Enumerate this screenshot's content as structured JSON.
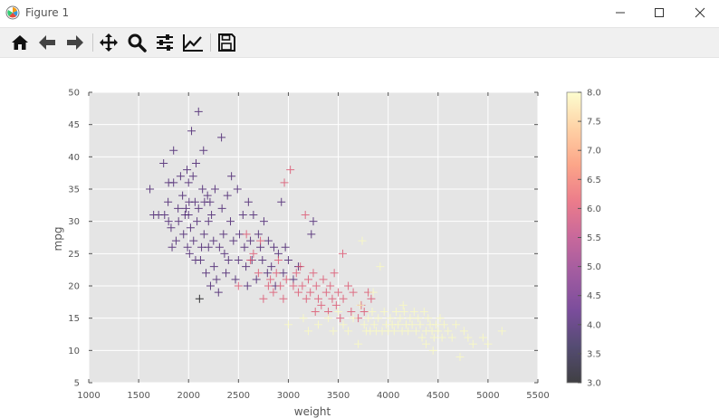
{
  "window": {
    "title": "Figure 1"
  },
  "toolbar": {
    "tools": [
      "home-icon",
      "back-arrow-icon",
      "forward-arrow-icon",
      "pan-icon",
      "zoom-icon",
      "configure-subplots-icon",
      "edit-axis-icon",
      "save-icon"
    ]
  },
  "colors": {
    "axes_bg": "#e5e5e5",
    "grid": "#ffffff",
    "window_bg": "#ffffff",
    "toolbar_bg": "#f0f0f0"
  },
  "chart_data": {
    "type": "scatter",
    "xlabel": "weight",
    "ylabel": "mpg",
    "xlim": [
      1000,
      5500
    ],
    "ylim": [
      5,
      50
    ],
    "xticks": [
      1000,
      1500,
      2000,
      2500,
      3000,
      3500,
      4000,
      4500,
      5000,
      5500
    ],
    "yticks": [
      5,
      10,
      15,
      20,
      25,
      30,
      35,
      40,
      45,
      50
    ],
    "grid": true,
    "marker": "+",
    "colormap": "magma",
    "colorbar": {
      "range": [
        3.0,
        8.0
      ],
      "ticks": [
        "3.0",
        "3.5",
        "4.0",
        "4.5",
        "5.0",
        "5.5",
        "6.0",
        "6.5",
        "7.0",
        "7.5",
        "8.0"
      ]
    },
    "points": [
      [
        1613,
        35,
        4
      ],
      [
        1650,
        31,
        4
      ],
      [
        1700,
        31,
        4
      ],
      [
        1750,
        39,
        4
      ],
      [
        1760,
        31,
        4
      ],
      [
        1795,
        33,
        4
      ],
      [
        1800,
        36,
        4
      ],
      [
        1800,
        30,
        4
      ],
      [
        1825,
        29,
        4
      ],
      [
        1835,
        26,
        4
      ],
      [
        1850,
        41,
        4
      ],
      [
        1850,
        36,
        4
      ],
      [
        1875,
        27,
        4
      ],
      [
        1895,
        32,
        4
      ],
      [
        1900,
        30,
        4
      ],
      [
        1920,
        37,
        4
      ],
      [
        1940,
        34,
        4
      ],
      [
        1950,
        28,
        4
      ],
      [
        1965,
        31,
        4
      ],
      [
        1975,
        32,
        4
      ],
      [
        1985,
        38,
        4
      ],
      [
        1990,
        26,
        4
      ],
      [
        2000,
        36,
        4
      ],
      [
        2000,
        31,
        4
      ],
      [
        2005,
        33,
        4
      ],
      [
        2010,
        25,
        4
      ],
      [
        2020,
        29,
        4
      ],
      [
        2030,
        44,
        4
      ],
      [
        2045,
        37,
        4
      ],
      [
        2050,
        27,
        4
      ],
      [
        2065,
        33,
        4
      ],
      [
        2070,
        24,
        4
      ],
      [
        2075,
        39,
        4
      ],
      [
        2085,
        30,
        4
      ],
      [
        2100,
        47,
        4
      ],
      [
        2100,
        32,
        4
      ],
      [
        2110,
        18,
        3
      ],
      [
        2120,
        24,
        4
      ],
      [
        2130,
        26,
        4
      ],
      [
        2140,
        35,
        4
      ],
      [
        2150,
        41,
        4
      ],
      [
        2155,
        28,
        4
      ],
      [
        2160,
        33,
        4
      ],
      [
        2175,
        22,
        4
      ],
      [
        2190,
        34,
        4
      ],
      [
        2200,
        30,
        4
      ],
      [
        2200,
        26,
        4
      ],
      [
        2215,
        33,
        4
      ],
      [
        2220,
        20,
        4
      ],
      [
        2230,
        31,
        4
      ],
      [
        2250,
        27,
        4
      ],
      [
        2255,
        23,
        4
      ],
      [
        2265,
        35,
        4
      ],
      [
        2280,
        21,
        4
      ],
      [
        2300,
        19,
        4
      ],
      [
        2310,
        26,
        4
      ],
      [
        2330,
        43,
        4
      ],
      [
        2335,
        32,
        4
      ],
      [
        2350,
        28,
        4
      ],
      [
        2360,
        25,
        4
      ],
      [
        2375,
        22,
        4
      ],
      [
        2390,
        34,
        4
      ],
      [
        2400,
        24,
        4
      ],
      [
        2420,
        30,
        4
      ],
      [
        2430,
        37,
        4
      ],
      [
        2450,
        27,
        4
      ],
      [
        2470,
        21,
        4
      ],
      [
        2490,
        35,
        4
      ],
      [
        2500,
        24,
        4
      ],
      [
        2510,
        28,
        4
      ],
      [
        2545,
        31,
        4
      ],
      [
        2560,
        26,
        4
      ],
      [
        2575,
        23,
        4
      ],
      [
        2590,
        20,
        4
      ],
      [
        2600,
        33,
        4
      ],
      [
        2620,
        27,
        4
      ],
      [
        2635,
        24,
        4
      ],
      [
        2650,
        31,
        4
      ],
      [
        2680,
        21,
        4
      ],
      [
        2700,
        28,
        4
      ],
      [
        2720,
        26,
        4
      ],
      [
        2740,
        24,
        4
      ],
      [
        2755,
        30,
        4
      ],
      [
        2790,
        22,
        4
      ],
      [
        2800,
        27,
        4
      ],
      [
        2830,
        23,
        4
      ],
      [
        2855,
        26,
        4
      ],
      [
        2870,
        20,
        4
      ],
      [
        2900,
        25,
        4
      ],
      [
        2930,
        33,
        4
      ],
      [
        2950,
        22,
        4
      ],
      [
        2970,
        26,
        4
      ],
      [
        3000,
        24,
        4
      ],
      [
        3050,
        21,
        4
      ],
      [
        3100,
        23,
        4
      ],
      [
        3230,
        28,
        4
      ],
      [
        3250,
        30,
        4
      ],
      [
        2500,
        20,
        6
      ],
      [
        2580,
        28,
        6
      ],
      [
        2620,
        24,
        6
      ],
      [
        2650,
        25,
        6
      ],
      [
        2700,
        22,
        6
      ],
      [
        2720,
        27,
        6
      ],
      [
        2750,
        18,
        6
      ],
      [
        2800,
        20,
        6
      ],
      [
        2820,
        21,
        6
      ],
      [
        2850,
        19,
        6
      ],
      [
        2880,
        22,
        6
      ],
      [
        2900,
        24,
        6
      ],
      [
        2920,
        20,
        6
      ],
      [
        2950,
        18,
        6
      ],
      [
        2960,
        36,
        6
      ],
      [
        2980,
        21,
        6
      ],
      [
        3020,
        38,
        6
      ],
      [
        3050,
        20,
        6
      ],
      [
        3080,
        22,
        6
      ],
      [
        3100,
        19,
        6
      ],
      [
        3120,
        23,
        6
      ],
      [
        3140,
        20,
        6
      ],
      [
        3170,
        31,
        6
      ],
      [
        3180,
        18,
        6
      ],
      [
        3200,
        21,
        6
      ],
      [
        3220,
        19,
        6
      ],
      [
        3250,
        22,
        6
      ],
      [
        3270,
        16,
        6
      ],
      [
        3280,
        20,
        6
      ],
      [
        3300,
        18,
        6
      ],
      [
        3330,
        17,
        6
      ],
      [
        3350,
        21,
        6
      ],
      [
        3380,
        19,
        6
      ],
      [
        3400,
        16,
        6
      ],
      [
        3420,
        20,
        6
      ],
      [
        3440,
        18,
        6
      ],
      [
        3460,
        22,
        6
      ],
      [
        3480,
        17,
        6
      ],
      [
        3500,
        19,
        6
      ],
      [
        3520,
        15,
        6
      ],
      [
        3545,
        25,
        6
      ],
      [
        3550,
        18,
        6
      ],
      [
        3600,
        20,
        6
      ],
      [
        3630,
        16,
        6
      ],
      [
        3650,
        19,
        6
      ],
      [
        3700,
        15,
        6
      ],
      [
        3730,
        17,
        6
      ],
      [
        3760,
        16,
        6
      ],
      [
        3800,
        19,
        6
      ],
      [
        3830,
        18,
        6
      ],
      [
        3000,
        14,
        8
      ],
      [
        3150,
        15,
        8
      ],
      [
        3200,
        13,
        8
      ],
      [
        3300,
        14,
        8
      ],
      [
        3400,
        15,
        8
      ],
      [
        3450,
        13,
        8
      ],
      [
        3500,
        16,
        8
      ],
      [
        3550,
        14,
        8
      ],
      [
        3600,
        13,
        8
      ],
      [
        3650,
        15,
        8
      ],
      [
        3700,
        11,
        8
      ],
      [
        3720,
        17,
        8
      ],
      [
        3740,
        27,
        8
      ],
      [
        3760,
        14,
        8
      ],
      [
        3780,
        13,
        8
      ],
      [
        3800,
        15,
        8
      ],
      [
        3820,
        13,
        8
      ],
      [
        3840,
        16,
        8
      ],
      [
        3860,
        14,
        8
      ],
      [
        3880,
        13,
        8
      ],
      [
        3900,
        15,
        8
      ],
      [
        3920,
        23,
        8
      ],
      [
        3940,
        13,
        8
      ],
      [
        3960,
        16,
        8
      ],
      [
        3980,
        14,
        8
      ],
      [
        4000,
        13,
        8
      ],
      [
        4020,
        15,
        8
      ],
      [
        4040,
        14,
        8
      ],
      [
        4060,
        13,
        8
      ],
      [
        4080,
        16,
        8
      ],
      [
        4100,
        14,
        8
      ],
      [
        4120,
        15,
        8
      ],
      [
        4140,
        13,
        8
      ],
      [
        4160,
        16,
        8
      ],
      [
        4180,
        14,
        8
      ],
      [
        4200,
        13,
        8
      ],
      [
        4220,
        15,
        8
      ],
      [
        4240,
        14,
        8
      ],
      [
        4260,
        16,
        8
      ],
      [
        4280,
        13,
        8
      ],
      [
        4300,
        15,
        8
      ],
      [
        4320,
        14,
        8
      ],
      [
        4340,
        12,
        8
      ],
      [
        4360,
        16,
        8
      ],
      [
        4380,
        13,
        8
      ],
      [
        4400,
        15,
        8
      ],
      [
        4420,
        14,
        8
      ],
      [
        4440,
        13,
        8
      ],
      [
        4460,
        12,
        8
      ],
      [
        4480,
        14,
        8
      ],
      [
        4500,
        13,
        8
      ],
      [
        4520,
        15,
        8
      ],
      [
        4540,
        12,
        8
      ],
      [
        4560,
        14,
        8
      ],
      [
        4600,
        13,
        8
      ],
      [
        4640,
        12,
        8
      ],
      [
        4680,
        14,
        8
      ],
      [
        4720,
        9,
        8
      ],
      [
        4760,
        13,
        8
      ],
      [
        4800,
        12,
        8
      ],
      [
        4850,
        11,
        8
      ],
      [
        4950,
        12,
        8
      ],
      [
        5000,
        11,
        8
      ],
      [
        5140,
        13,
        8
      ],
      [
        4380,
        11,
        8
      ],
      [
        4450,
        10,
        8
      ],
      [
        3850,
        19,
        8
      ],
      [
        4150,
        17,
        8
      ]
    ]
  }
}
